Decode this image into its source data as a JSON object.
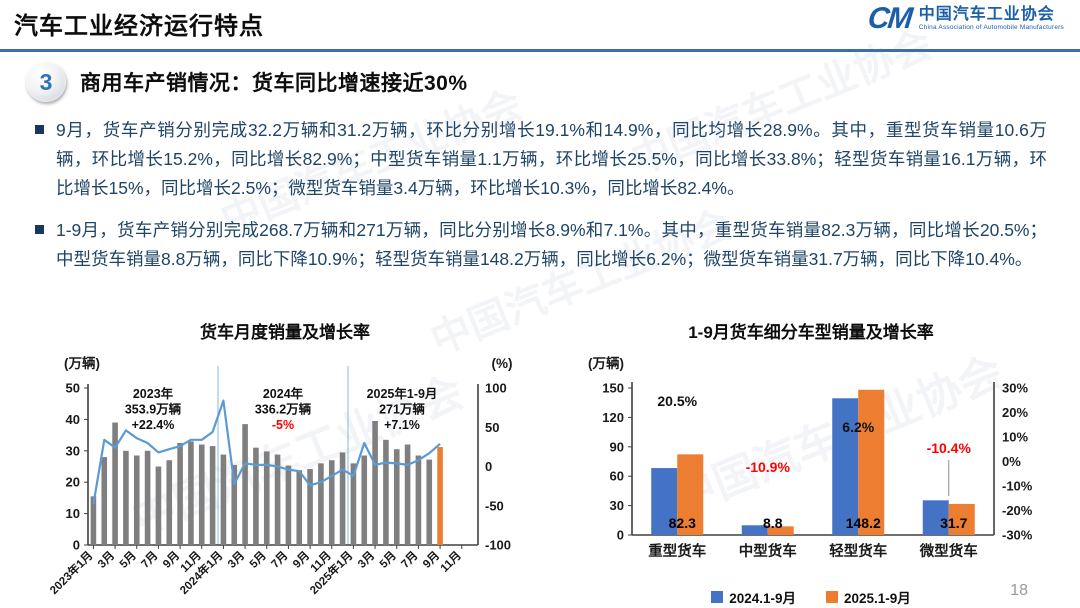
{
  "header": {
    "title": "汽车工业经济运行特点",
    "logo": {
      "mark": "CM",
      "name_cn": "中国汽车工业协会",
      "name_en": "China Association of Automobile Manufacturers"
    }
  },
  "section": {
    "number": "3",
    "title": "商用车产销情况：",
    "subtitle": "货车同比增速接近30%"
  },
  "bullets": [
    "9月，货车产销分别完成32.2万辆和31.2万辆，环比分别增长19.1%和14.9%，同比均增长28.9%。其中，重型货车销量10.6万辆，环比增长15.2%，同比增长82.9%；中型货车销量1.1万辆，环比增长25.5%，同比增长33.8%；轻型货车销量16.1万辆，环比增长15%，同比增长2.5%；微型货车销量3.4万辆，环比增长10.3%，同比增长82.4%。",
    "1-9月，货车产销分别完成268.7万辆和271万辆，同比分别增长8.9%和7.1%。其中，重型货车销量82.3万辆，同比增长20.5%；中型货车销量8.8万辆，同比下降10.9%；轻型货车销量148.2万辆，同比增长6.2%；微型货车销量31.7万辆，同比下降10.4%。"
  ],
  "page_number": "18",
  "chart_data": [
    {
      "type": "bar+line",
      "title": "货车月度销量及增长率",
      "unit_left": "(万辆)",
      "unit_right": "(%)",
      "ylim_left": [
        0,
        50
      ],
      "yticks_left": [
        0,
        10,
        20,
        30,
        40,
        50
      ],
      "ylim_right": [
        -100,
        100
      ],
      "yticks_right": [
        100,
        50,
        0,
        -50,
        -100
      ],
      "x_tick_labels": [
        "2023年1月",
        "3月",
        "5月",
        "7月",
        "9月",
        "11月",
        "2024年1月",
        "3月",
        "5月",
        "7月",
        "9月",
        "11月",
        "2025年1月",
        "3月",
        "5月",
        "7月",
        "9月",
        "11月"
      ],
      "n_slots": 36,
      "bar_series": {
        "name": "月度销量(万辆)",
        "values": [
          15.5,
          28,
          39,
          30,
          28.5,
          30,
          25,
          27,
          32.5,
          33,
          32,
          31.5,
          28.8,
          25.5,
          38.5,
          31,
          29.8,
          28.8,
          25.3,
          23.8,
          24.2,
          26,
          27,
          29.5,
          26,
          28.5,
          39.5,
          33.5,
          30.5,
          32,
          28.5,
          27.2,
          31.2
        ]
      },
      "line_series": {
        "name": "同比增长率(%)",
        "values": [
          -48,
          34,
          24,
          46,
          36,
          30,
          18,
          22,
          26,
          34,
          34,
          44,
          84,
          -22,
          4,
          2,
          2,
          0,
          -4,
          -6,
          -24,
          -20,
          -12,
          -4,
          -12,
          30,
          2,
          5,
          4,
          2,
          8,
          17,
          28.9
        ]
      },
      "annotations": [
        {
          "lines": [
            "2023年",
            "353.9万辆",
            "+22.4%"
          ],
          "growth_color": "#111111"
        },
        {
          "lines": [
            "2024年",
            "336.2万辆",
            "-5%"
          ],
          "growth_color": "#ff0000"
        },
        {
          "lines": [
            "2025年1-9月",
            "271万辆",
            "+7.1%"
          ],
          "growth_color": "#111111"
        }
      ],
      "year_separator_slots": [
        12,
        24
      ],
      "colors": {
        "bar": "#7f7f7f",
        "bar_current": "#ED7D31",
        "line": "#5B9BD5",
        "separator": "#9DC3E6"
      }
    },
    {
      "type": "bar",
      "title": "1-9月货车细分车型销量及增长率",
      "unit_left": "(万辆)",
      "categories": [
        "重型货车",
        "中型货车",
        "轻型货车",
        "微型货车"
      ],
      "series": [
        {
          "name": "2024.1-9月",
          "color": "#4472C4",
          "values": [
            68.3,
            9.9,
            139.5,
            35.4
          ]
        },
        {
          "name": "2025.1-9月",
          "color": "#ED7D31",
          "values": [
            82.3,
            8.8,
            148.2,
            31.7
          ]
        }
      ],
      "value_labels": [
        "82.3",
        "8.8",
        "148.2",
        "31.7"
      ],
      "growth_labels": [
        {
          "text": "20.5%",
          "color": "#111111"
        },
        {
          "text": "-10.9%",
          "color": "#ff0000"
        },
        {
          "text": "6.2%",
          "color": "#111111"
        },
        {
          "text": "-10.4%",
          "color": "#ff0000"
        }
      ],
      "ylim_left": [
        0,
        150
      ],
      "yticks_left": [
        0,
        30,
        60,
        90,
        120,
        150
      ],
      "ylim_right": [
        -30,
        30
      ],
      "yticks_right_labels": [
        "30%",
        "20%",
        "10%",
        "0%",
        "-10%",
        "-20%",
        "-30%"
      ],
      "legend_position": "bottom"
    }
  ]
}
